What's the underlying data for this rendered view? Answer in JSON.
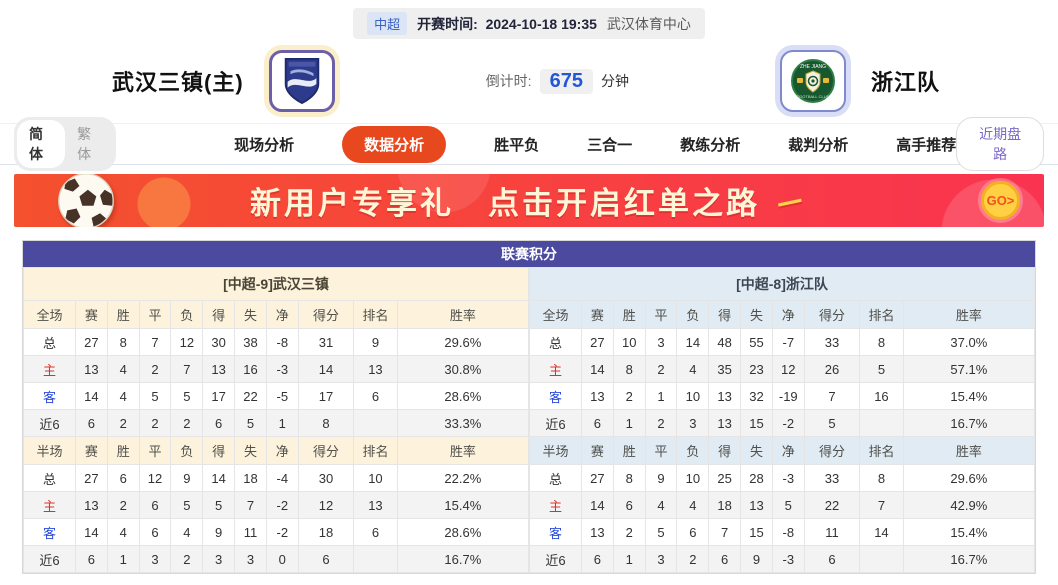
{
  "header": {
    "league_badge": "中超",
    "kickoff_label": "开赛时间:",
    "kickoff_time": "2024-10-18 19:35",
    "venue": "武汉体育中心",
    "home_team": "武汉三镇(主)",
    "away_team": "浙江队",
    "countdown_label": "倒计时:",
    "countdown_value": "675",
    "countdown_unit": "分钟"
  },
  "nav": {
    "lang_simplified": "简体",
    "lang_traditional": "繁体",
    "items": [
      {
        "label": "现场分析",
        "active": false
      },
      {
        "label": "数据分析",
        "active": true
      },
      {
        "label": "胜平负",
        "active": false
      },
      {
        "label": "三合一",
        "active": false
      },
      {
        "label": "教练分析",
        "active": false
      },
      {
        "label": "裁判分析",
        "active": false
      },
      {
        "label": "高手推荐",
        "active": false
      }
    ],
    "recent_trends_button": "近期盘路"
  },
  "banner": {
    "text1": "新用户专享礼",
    "text2": "点击开启红单之路",
    "spark": "－",
    "go_label": "GO>"
  },
  "table": {
    "title": "联赛积分",
    "home_section": "[中超-9]武汉三镇",
    "away_section": "[中超-8]浙江队",
    "columns_full": [
      "全场",
      "赛",
      "胜",
      "平",
      "负",
      "得",
      "失",
      "净",
      "得分",
      "排名",
      "胜率"
    ],
    "columns_half": [
      "半场",
      "赛",
      "胜",
      "平",
      "负",
      "得",
      "失",
      "净",
      "得分",
      "排名",
      "胜率"
    ],
    "home_full": [
      {
        "label": "总",
        "cells": [
          "27",
          "8",
          "7",
          "12",
          "30",
          "38",
          "-8",
          "31",
          "9",
          "29.6%"
        ]
      },
      {
        "label": "主",
        "cells": [
          "13",
          "4",
          "2",
          "7",
          "13",
          "16",
          "-3",
          "14",
          "13",
          "30.8%"
        ]
      },
      {
        "label": "客",
        "cells": [
          "14",
          "4",
          "5",
          "5",
          "17",
          "22",
          "-5",
          "17",
          "6",
          "28.6%"
        ]
      },
      {
        "label": "近6",
        "cells": [
          "6",
          "2",
          "2",
          "2",
          "6",
          "5",
          "1",
          "8",
          "",
          "33.3%"
        ]
      }
    ],
    "home_half": [
      {
        "label": "总",
        "cells": [
          "27",
          "6",
          "12",
          "9",
          "14",
          "18",
          "-4",
          "30",
          "10",
          "22.2%"
        ]
      },
      {
        "label": "主",
        "cells": [
          "13",
          "2",
          "6",
          "5",
          "5",
          "7",
          "-2",
          "12",
          "13",
          "15.4%"
        ]
      },
      {
        "label": "客",
        "cells": [
          "14",
          "4",
          "6",
          "4",
          "9",
          "11",
          "-2",
          "18",
          "6",
          "28.6%"
        ]
      },
      {
        "label": "近6",
        "cells": [
          "6",
          "1",
          "3",
          "2",
          "3",
          "3",
          "0",
          "6",
          "",
          "16.7%"
        ]
      }
    ],
    "away_full": [
      {
        "label": "总",
        "cells": [
          "27",
          "10",
          "3",
          "14",
          "48",
          "55",
          "-7",
          "33",
          "8",
          "37.0%"
        ]
      },
      {
        "label": "主",
        "cells": [
          "14",
          "8",
          "2",
          "4",
          "35",
          "23",
          "12",
          "26",
          "5",
          "57.1%"
        ]
      },
      {
        "label": "客",
        "cells": [
          "13",
          "2",
          "1",
          "10",
          "13",
          "32",
          "-19",
          "7",
          "16",
          "15.4%"
        ]
      },
      {
        "label": "近6",
        "cells": [
          "6",
          "1",
          "2",
          "3",
          "13",
          "15",
          "-2",
          "5",
          "",
          "16.7%"
        ]
      }
    ],
    "away_half": [
      {
        "label": "总",
        "cells": [
          "27",
          "8",
          "9",
          "10",
          "25",
          "28",
          "-3",
          "33",
          "8",
          "29.6%"
        ]
      },
      {
        "label": "主",
        "cells": [
          "14",
          "6",
          "4",
          "4",
          "18",
          "13",
          "5",
          "22",
          "7",
          "42.9%"
        ]
      },
      {
        "label": "客",
        "cells": [
          "13",
          "2",
          "5",
          "6",
          "7",
          "15",
          "-8",
          "11",
          "14",
          "15.4%"
        ]
      },
      {
        "label": "近6",
        "cells": [
          "6",
          "1",
          "3",
          "2",
          "6",
          "9",
          "-3",
          "6",
          "",
          "16.7%"
        ]
      }
    ]
  },
  "icons": {
    "home_logo": "wuhan-shield-logo",
    "away_logo": "zhejiang-circle-logo",
    "banner_ball": "soccer-ball-icon",
    "go_button": "go-arrow-icon"
  },
  "colors": {
    "accent_red": "#e8481e",
    "title_purple": "#4b4a9e",
    "home_header_bg": "#fdf3dc",
    "away_header_bg": "#e0ebf3",
    "countdown_blue": "#2457d6",
    "banner_gradient_start": "#f4512e",
    "banner_gradient_end": "#fa3350",
    "go_yellow": "#ffd043",
    "home_row_label_red": "#d9342b",
    "away_row_label_blue": "#2b4bd9"
  }
}
